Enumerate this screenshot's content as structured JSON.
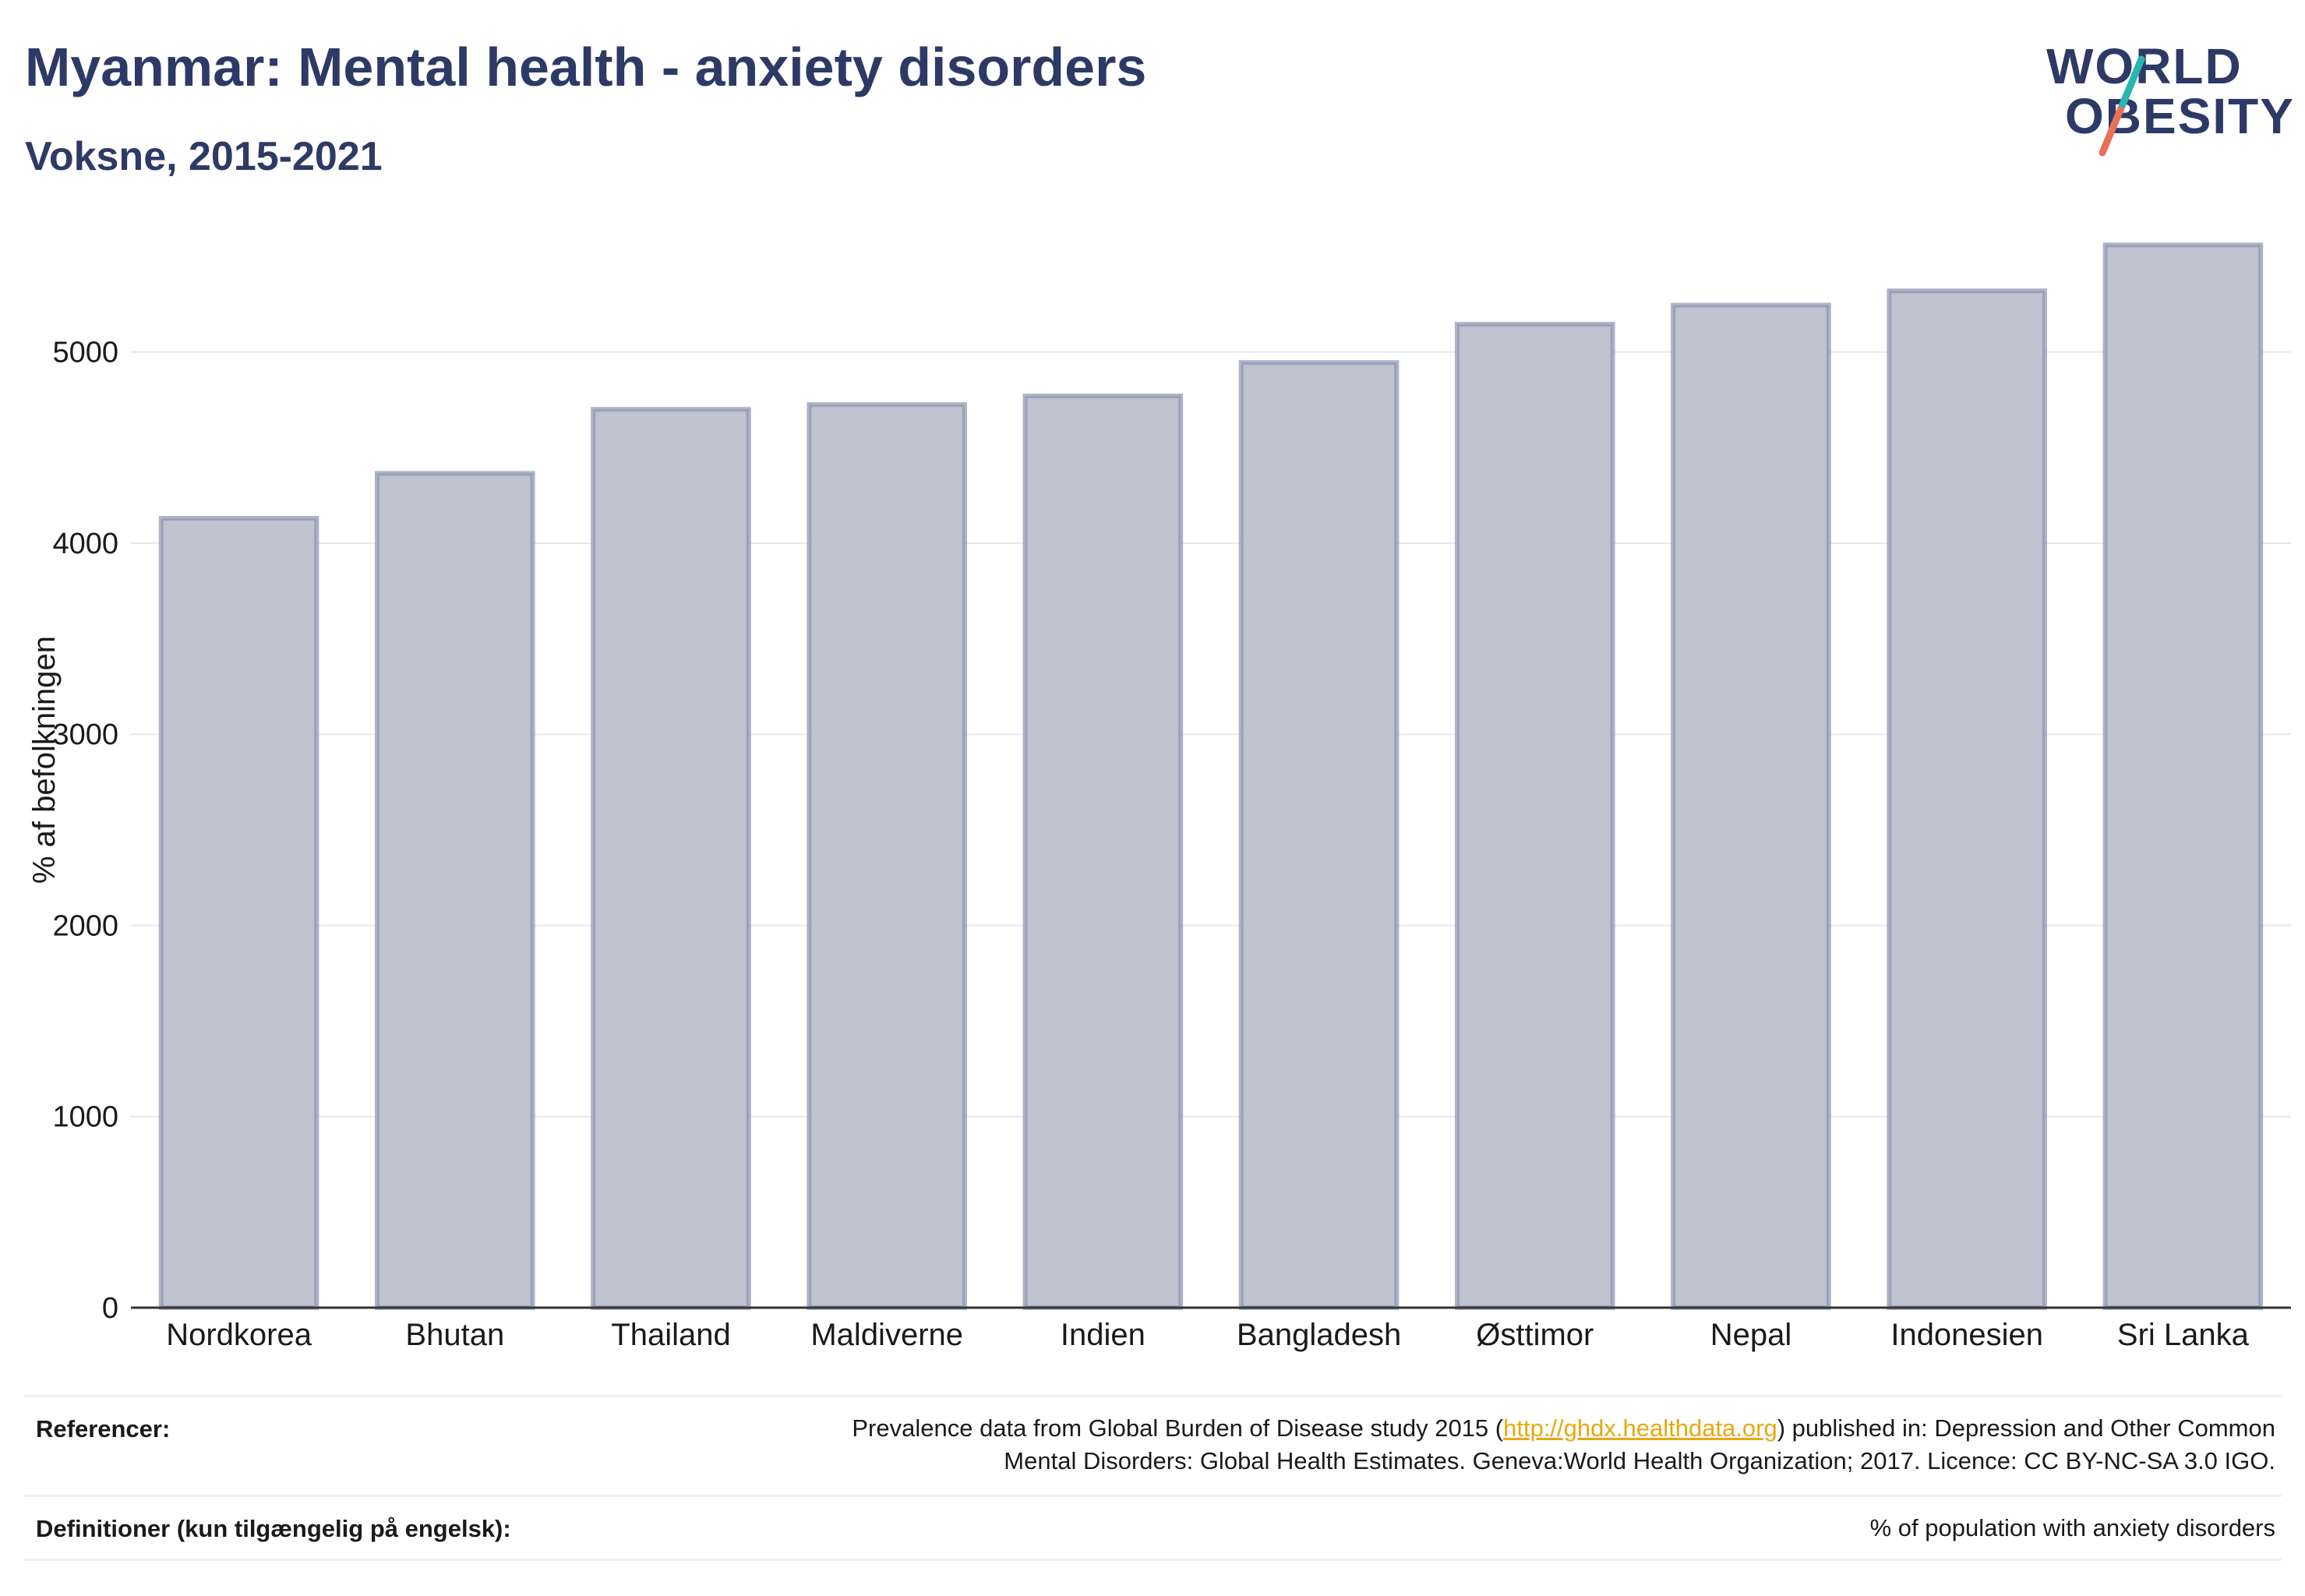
{
  "header": {
    "title": "Myanmar: Mental health - anxiety disorders",
    "subtitle": "Voksne, 2015-2021"
  },
  "logo": {
    "line1": "WORLD",
    "line2": "OBESITY"
  },
  "colors": {
    "title": "#2d3a66",
    "bar_fill": "#bfc3d0",
    "bar_stroke": "#8b93af",
    "grid": "#e8e8ee",
    "link": "#e6a90f",
    "logo_slash_teal": "#2bb5b0",
    "logo_slash_coral": "#e8705a"
  },
  "chart_data": {
    "type": "bar",
    "categories": [
      "Nordkorea",
      "Bhutan",
      "Thailand",
      "Maldiverne",
      "Indien",
      "Bangladesh",
      "Østtimor",
      "Nepal",
      "Indonesien",
      "Sri Lanka"
    ],
    "values": [
      4130,
      4365,
      4700,
      4725,
      4770,
      4945,
      5145,
      5245,
      5320,
      5560
    ],
    "ylabel": "% af befolkningen",
    "xlabel": "",
    "ylim": [
      0,
      5700
    ],
    "yticks": [
      0,
      1000,
      2000,
      3000,
      4000,
      5000
    ],
    "grid": true,
    "legend": "none"
  },
  "footer": {
    "references_label": "Referencer:",
    "references_text_before": "Prevalence data from Global Burden of Disease study 2015 (",
    "references_link": "http://ghdx.healthdata.org",
    "references_text_after": ") published in: Depression and Other Common",
    "references_line2": "Mental Disorders: Global Health Estimates. Geneva:World Health Organization; 2017. Licence: CC BY-NC-SA 3.0 IGO.",
    "definitions_label": "Definitioner (kun tilgængelig på engelsk):",
    "definitions_text": "% of population with anxiety disorders"
  }
}
